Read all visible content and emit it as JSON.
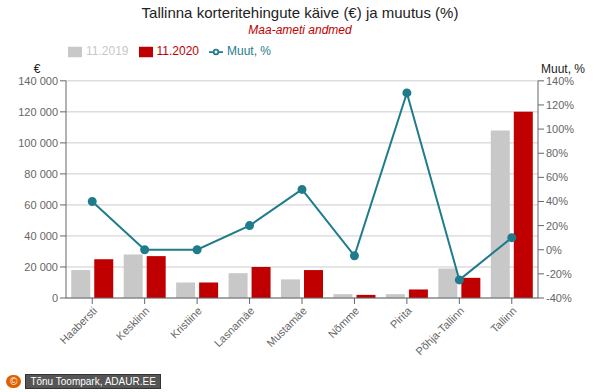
{
  "chart_data": {
    "type": "bar",
    "title": "Tallinna korteritehingute käive (€) ja muutus (%)",
    "subtitle": "Maa-ameti andmed",
    "y_label": "€",
    "y2_label": "Muut, %",
    "annotations": [
      "©",
      "Tõnu Toompark, ADAUR.EE"
    ],
    "categories": [
      "Haabersti",
      "Kesklinn",
      "Kristiine",
      "Lasnamäe",
      "Mustamäe",
      "Nõmme",
      "Pirita",
      "Põhja-Tallinn",
      "Tallinn"
    ],
    "series": [
      {
        "name": "11.2019",
        "type": "bar",
        "color": "#c8c8c8",
        "values": [
          18000,
          28000,
          10000,
          16000,
          12000,
          2500,
          2500,
          19000,
          108000
        ]
      },
      {
        "name": "11.2020",
        "type": "bar",
        "color": "#c00000",
        "values": [
          25000,
          27000,
          10000,
          20000,
          18000,
          2000,
          5500,
          13000,
          120000
        ]
      },
      {
        "name": "Muut, %",
        "type": "line",
        "axis": "y2",
        "marker": "circle",
        "color": "#1f7c8c",
        "values": [
          40,
          0,
          0,
          20,
          50,
          -5,
          130,
          -25,
          10
        ]
      }
    ],
    "ylim": [
      0,
      140000
    ],
    "yticks": [
      0,
      {
        "value": 20000,
        "label": "20 000"
      },
      {
        "value": 40000,
        "label": "40 000"
      },
      {
        "value": 60000,
        "label": "60 000"
      },
      {
        "value": 80000,
        "label": "80 000"
      },
      {
        "value": 100000,
        "label": "100 000"
      },
      {
        "value": 120000,
        "label": "120 000"
      },
      {
        "value": 140000,
        "label": "140 000"
      }
    ],
    "y2lim": [
      -40,
      140
    ],
    "y2ticks": [
      {
        "value": -40,
        "label": "-40%"
      },
      {
        "value": -20,
        "label": "-20%"
      },
      {
        "value": 0,
        "label": "0%"
      },
      {
        "value": 20,
        "label": "20%"
      },
      {
        "value": 40,
        "label": "40%"
      },
      {
        "value": 60,
        "label": "60%"
      },
      {
        "value": 80,
        "label": "80%"
      },
      {
        "value": 100,
        "label": "100%"
      },
      {
        "value": 120,
        "label": "120%"
      },
      {
        "value": 140,
        "label": "140%"
      }
    ],
    "grid": true,
    "legend": "upper left"
  }
}
